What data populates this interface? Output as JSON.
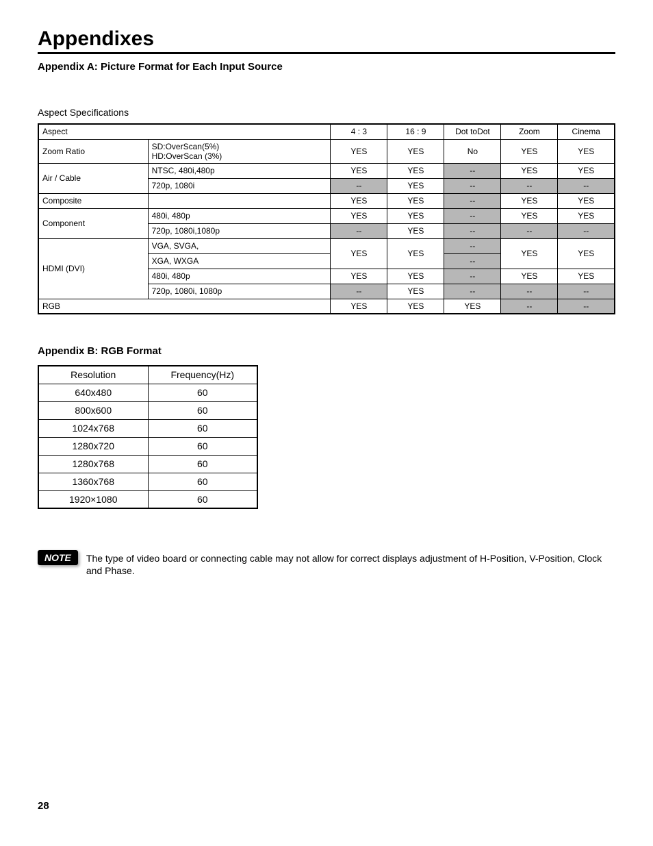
{
  "title": "Appendixes",
  "appendixA": {
    "heading": "Appendix A:  Picture Format for Each Input Source",
    "section_label": "Aspect Specifications",
    "header": {
      "aspect": "Aspect",
      "cols": [
        "4 : 3",
        "16 : 9",
        "Dot toDot",
        "Zoom",
        "Cinema"
      ]
    },
    "rows": [
      {
        "type": "data",
        "label": "Zoom Ratio",
        "label_rowspan": 1,
        "sub": "SD:OverScan(5%)\nHD:OverScan (3%)",
        "v": [
          "YES",
          "YES",
          "No",
          "YES",
          "YES"
        ],
        "shade": [
          0,
          0,
          0,
          0,
          0
        ]
      },
      {
        "type": "group_start",
        "label": "Air / Cable",
        "label_rowspan": 2,
        "sub": "NTSC, 480i,480p",
        "v": [
          "YES",
          "YES",
          "--",
          "YES",
          "YES"
        ],
        "shade": [
          0,
          0,
          1,
          0,
          0
        ]
      },
      {
        "type": "cont",
        "sub": "720p, 1080i",
        "v": [
          "--",
          "YES",
          "--",
          "--",
          "--"
        ],
        "shade": [
          1,
          0,
          1,
          1,
          1
        ]
      },
      {
        "type": "data",
        "label": "Composite",
        "label_rowspan": 1,
        "sub": "",
        "v": [
          "YES",
          "YES",
          "--",
          "YES",
          "YES"
        ],
        "shade": [
          0,
          0,
          1,
          0,
          0
        ]
      },
      {
        "type": "group_start",
        "label": "Component",
        "label_rowspan": 2,
        "sub": "480i, 480p",
        "v": [
          "YES",
          "YES",
          "--",
          "YES",
          "YES"
        ],
        "shade": [
          0,
          0,
          1,
          0,
          0
        ]
      },
      {
        "type": "cont",
        "sub": "720p, 1080i,1080p",
        "v": [
          "--",
          "YES",
          "--",
          "--",
          "--"
        ],
        "shade": [
          1,
          0,
          1,
          1,
          1
        ]
      },
      {
        "type": "hdmi_start",
        "label": "HDMI (DVI)",
        "label_rowspan": 4,
        "sub": "VGA, SVGA,",
        "topmerge": true
      },
      {
        "type": "hdmi_second",
        "sub": "XGA, WXGA"
      },
      {
        "type": "cont",
        "sub": "480i, 480p",
        "v": [
          "YES",
          "YES",
          "--",
          "YES",
          "YES"
        ],
        "shade": [
          0,
          0,
          1,
          0,
          0
        ]
      },
      {
        "type": "cont",
        "sub": "720p, 1080i, 1080p",
        "v": [
          "--",
          "YES",
          "--",
          "--",
          "--"
        ],
        "shade": [
          1,
          0,
          1,
          1,
          1
        ]
      },
      {
        "type": "rgb",
        "label": "RGB",
        "v": [
          "YES",
          "YES",
          "YES",
          "--",
          "--"
        ],
        "shade": [
          0,
          0,
          0,
          1,
          1
        ]
      }
    ],
    "hdmi_merged": {
      "v": [
        "YES",
        "YES",
        "--",
        "--",
        "YES",
        "YES"
      ],
      "v12": [
        "YES",
        "YES"
      ],
      "v3a": "--",
      "v3b": "--",
      "v45": [
        "YES",
        "YES"
      ]
    }
  },
  "appendixB": {
    "heading": "Appendix B:  RGB Format",
    "columns": [
      "Resolution",
      "Frequency(Hz)"
    ],
    "rows": [
      [
        "640x480",
        "60"
      ],
      [
        "800x600",
        "60"
      ],
      [
        "1024x768",
        "60"
      ],
      [
        "1280x720",
        "60"
      ],
      [
        "1280x768",
        "60"
      ],
      [
        "1360x768",
        "60"
      ],
      [
        "1920×1080",
        "60"
      ]
    ]
  },
  "note": {
    "badge": "NOTE",
    "text": "The type of video board or connecting cable may not allow for correct displays adjustment of H-Position, V-Position, Clock and Phase."
  },
  "page_number": "28",
  "colors": {
    "shaded_bg": "#b7b7b7",
    "text": "#000000",
    "bg": "#ffffff"
  }
}
